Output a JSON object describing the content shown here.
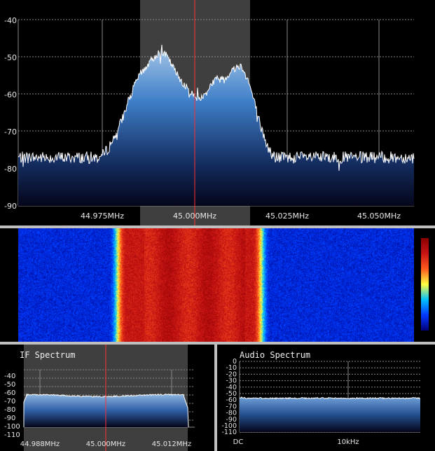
{
  "main_spectrum": {
    "y_ticks": [
      "-40",
      "-50",
      "-60",
      "-70",
      "-80",
      "-90"
    ],
    "x_ticks": [
      "44.975MHz",
      "45.000MHz",
      "45.025MHz",
      "45.050MHz"
    ]
  },
  "waterfall": {
    "colormap": [
      "#00007a",
      "#0038ff",
      "#00c0ff",
      "#ffff40",
      "#ff5a1e",
      "#c81414",
      "#8a0000"
    ]
  },
  "if_spectrum": {
    "title": "IF Spectrum",
    "y_ticks": [
      "-40",
      "-50",
      "-60",
      "-70",
      "-80",
      "-90",
      "-100",
      "-110"
    ],
    "x_ticks": [
      "44.988MHz",
      "45.000MHz",
      "45.012MHz"
    ]
  },
  "audio_spectrum": {
    "title": "Audio Spectrum",
    "y_ticks": [
      "0",
      "-10",
      "-20",
      "-30",
      "-40",
      "-50",
      "-60",
      "-70",
      "-80",
      "-90",
      "-100",
      "-110"
    ],
    "x_ticks": [
      "DC",
      "10kHz"
    ]
  },
  "colors": {
    "grid": "#8a8a8a",
    "trace": "#ffffff",
    "center_line": "#ff3030",
    "bandwidth_shade": "#5a5a5a",
    "fill_top": "#6ba8e8",
    "fill_bottom": "#06081c",
    "divider": "#bfbfbf"
  }
}
